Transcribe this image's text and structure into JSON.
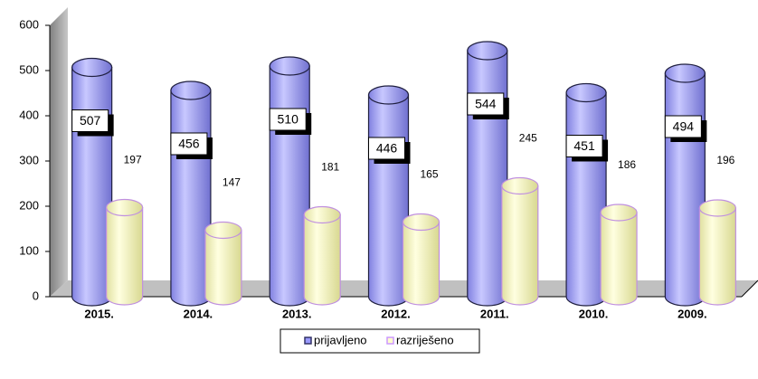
{
  "chart_data": {
    "type": "bar3d",
    "categories": [
      "2015.",
      "2014.",
      "2013.",
      "2012.",
      "2011.",
      "2010.",
      "2009."
    ],
    "series": [
      {
        "name": "prijavljeno",
        "color": "#9999ff",
        "values": [
          507,
          456,
          510,
          446,
          544,
          451,
          494
        ]
      },
      {
        "name": "razriješeno",
        "color": "#ffffcc",
        "values": [
          197,
          147,
          181,
          165,
          245,
          186,
          196
        ]
      }
    ],
    "ylim": [
      0,
      600
    ],
    "yticks": [
      0,
      100,
      200,
      300,
      400,
      500,
      600
    ],
    "legend": "bottom"
  }
}
